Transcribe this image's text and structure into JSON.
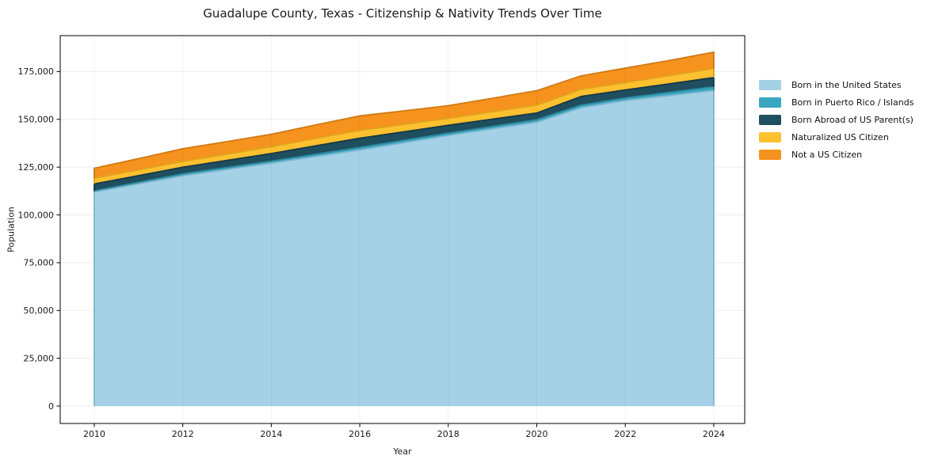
{
  "figure": {
    "title": "Guadalupe County, Texas - Citizenship & Nativity Trends Over Time"
  },
  "chart_data": {
    "type": "area",
    "stacked": true,
    "title": "Guadalupe County, Texas - Citizenship & Nativity Trends Over Time",
    "xlabel": "Year",
    "ylabel": "Population",
    "x": [
      2010,
      2011,
      2012,
      2013,
      2014,
      2015,
      2016,
      2017,
      2018,
      2019,
      2020,
      2021,
      2022,
      2023,
      2024
    ],
    "series": [
      {
        "name": "Born in the United States",
        "color": "#a5d1e6",
        "line_color": "#84b9d2",
        "values": [
          112000,
          116200,
          120400,
          123700,
          127000,
          130500,
          133900,
          137700,
          141500,
          145000,
          148400,
          156000,
          159800,
          162400,
          165000
        ]
      },
      {
        "name": "Born in Puerto Rico / Islands",
        "color": "#3aa7c1",
        "line_color": "#2e8a9f",
        "values": [
          600,
          850,
          1100,
          1100,
          1100,
          1250,
          1400,
          1350,
          1250,
          1300,
          1400,
          1400,
          1400,
          1700,
          2000
        ]
      },
      {
        "name": "Born Abroad of US Parent(s)",
        "color": "#1f4e5f",
        "line_color": "#163947",
        "values": [
          3600,
          3500,
          3450,
          3700,
          4000,
          4400,
          4800,
          4450,
          4150,
          3800,
          3500,
          4550,
          4150,
          4500,
          4850
        ]
      },
      {
        "name": "Naturalized US Citizen",
        "color": "#fdc02f",
        "line_color": "#dfa41f",
        "values": [
          3000,
          3000,
          3050,
          3300,
          3600,
          3850,
          4100,
          3850,
          3600,
          3850,
          4100,
          3750,
          3850,
          4300,
          4800
        ]
      },
      {
        "name": "Not a US Citizen",
        "color": "#f6921e",
        "line_color": "#d17a14",
        "values": [
          5200,
          5900,
          6650,
          6550,
          6500,
          7050,
          7600,
          7100,
          6650,
          7100,
          7600,
          7050,
          7600,
          7900,
          8500
        ]
      }
    ],
    "xticks": {
      "values": [
        2010,
        2012,
        2014,
        2016,
        2018,
        2020,
        2022,
        2024
      ],
      "labels": [
        "2010",
        "2012",
        "2014",
        "2016",
        "2018",
        "2020",
        "2022",
        "2024"
      ]
    },
    "yticks": {
      "values": [
        0,
        25000,
        50000,
        75000,
        100000,
        125000,
        150000,
        175000
      ],
      "labels": [
        "0",
        "25,000",
        "50,000",
        "75,000",
        "100,000",
        "125,000",
        "150,000",
        "175,000"
      ]
    },
    "xlim": [
      2009.23,
      2024.7
    ],
    "ylim": [
      -9110,
      193800
    ],
    "grid": true,
    "legend_position": "right",
    "background": "#ffffff",
    "text_color": "#1a1a1a",
    "grid_color_below": "#ededed",
    "grid_color_above": "rgba(0,0,0,0.05)",
    "spine_color": "#000000"
  }
}
